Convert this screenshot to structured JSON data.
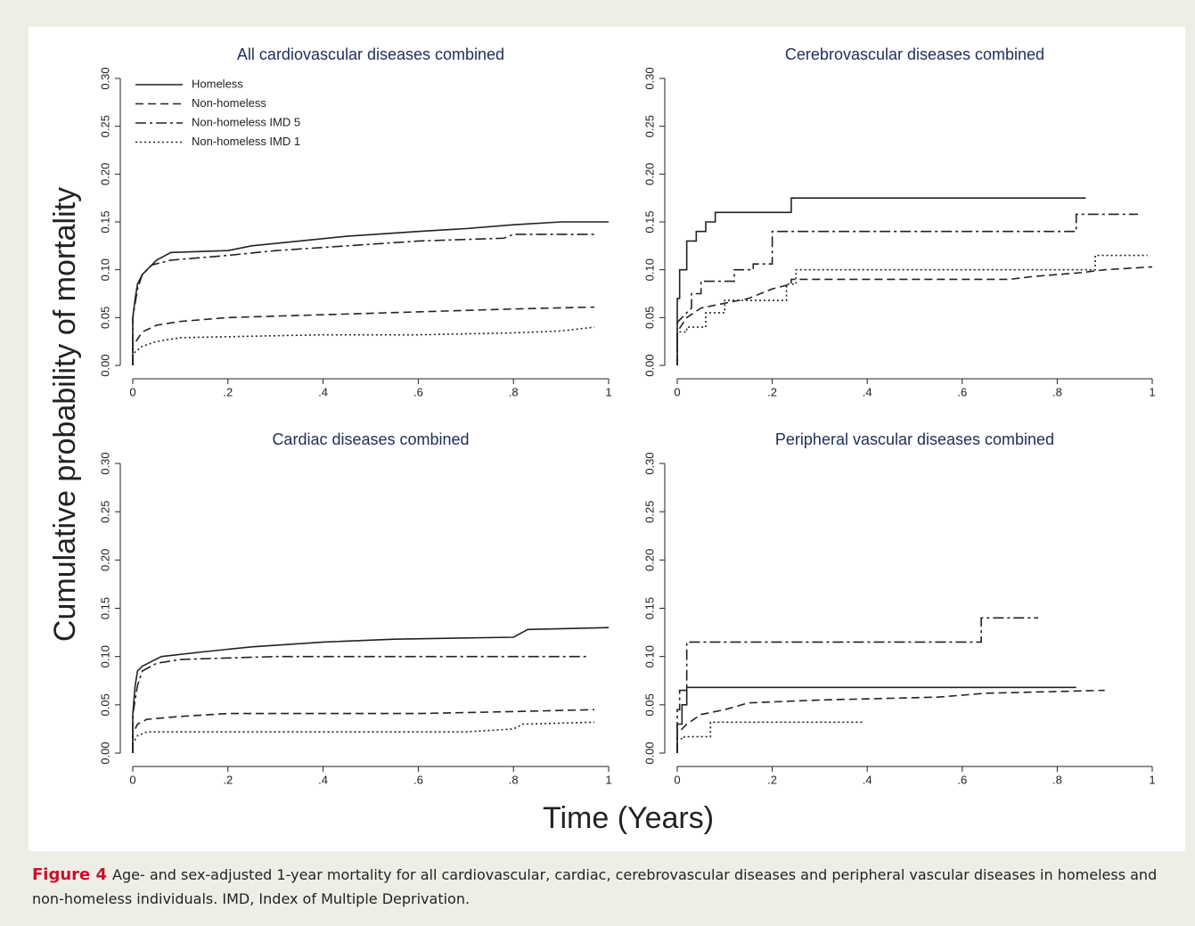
{
  "ylabel": "Cumulative probability of mortality",
  "xlabel": "Time (Years)",
  "caption": {
    "label": "Figure 4",
    "text": "Age- and sex-adjusted 1-year mortality for all cardiovascular, cardiac, cerebrovascular diseases and peripheral vascular diseases in homeless and non-homeless individuals. IMD, Index of Multiple Deprivation."
  },
  "chart_data": [
    {
      "type": "line",
      "title": "All cardiovascular diseases combined",
      "legend": "top-left",
      "xlim": [
        0,
        1
      ],
      "ylim": [
        0,
        0.3
      ],
      "xticks": [
        0,
        {
          "value": 0.2,
          "label": ".2"
        },
        {
          "value": 0.4,
          "label": ".4"
        },
        {
          "value": 0.6,
          "label": ".6"
        },
        {
          "value": 0.8,
          "label": ".8"
        },
        1
      ],
      "yticks": [
        {
          "value": 0,
          "label": "0.00"
        },
        {
          "value": 0.05,
          "label": "0.05"
        },
        {
          "value": 0.1,
          "label": "0.10"
        },
        {
          "value": 0.15,
          "label": "0.15"
        },
        {
          "value": 0.2,
          "label": "0.20"
        },
        {
          "value": 0.25,
          "label": "0.25"
        },
        {
          "value": 0.3,
          "label": "0.30"
        }
      ],
      "series": [
        {
          "name": "Homeless",
          "color": "#222222",
          "dash": "none",
          "x": [
            0,
            0,
            0.005,
            0.01,
            0.02,
            0.03,
            0.05,
            0.08,
            0.2,
            0.25,
            0.35,
            0.45,
            0.6,
            0.7,
            0.8,
            0.9,
            1
          ],
          "values": [
            0,
            0.05,
            0.07,
            0.085,
            0.095,
            0.1,
            0.11,
            0.118,
            0.12,
            0.125,
            0.13,
            0.135,
            0.14,
            0.143,
            0.147,
            0.15,
            0.15
          ]
        },
        {
          "name": "Non-homeless",
          "color": "#222222",
          "dash": "9,5",
          "x": [
            0,
            0,
            0.02,
            0.05,
            0.1,
            0.2,
            0.4,
            0.6,
            0.8,
            0.97
          ],
          "values": [
            0,
            0.02,
            0.035,
            0.042,
            0.046,
            0.05,
            0.053,
            0.056,
            0.059,
            0.061
          ]
        },
        {
          "name": "Non-homeless IMD 5",
          "color": "#222222",
          "dash": "12,4,3,4",
          "x": [
            0,
            0,
            0.01,
            0.02,
            0.04,
            0.08,
            0.2,
            0.3,
            0.45,
            0.6,
            0.78,
            0.8,
            0.97
          ],
          "values": [
            0,
            0.05,
            0.08,
            0.095,
            0.105,
            0.11,
            0.115,
            0.12,
            0.125,
            0.13,
            0.133,
            0.137,
            0.137
          ]
        },
        {
          "name": "Non-homeless IMD 1",
          "color": "#222222",
          "dash": "2,3",
          "x": [
            0,
            0,
            0.02,
            0.05,
            0.1,
            0.2,
            0.4,
            0.6,
            0.8,
            0.9,
            0.97
          ],
          "values": [
            0,
            0.012,
            0.02,
            0.025,
            0.029,
            0.03,
            0.032,
            0.032,
            0.034,
            0.036,
            0.04
          ]
        }
      ]
    },
    {
      "type": "line",
      "title": "Cerebrovascular diseases combined",
      "xlim": [
        0,
        1
      ],
      "ylim": [
        0,
        0.3
      ],
      "xticks": [
        0,
        {
          "value": 0.2,
          "label": ".2"
        },
        {
          "value": 0.4,
          "label": ".4"
        },
        {
          "value": 0.6,
          "label": ".6"
        },
        {
          "value": 0.8,
          "label": ".8"
        },
        1
      ],
      "yticks": [
        {
          "value": 0,
          "label": "0.00"
        },
        {
          "value": 0.05,
          "label": "0.05"
        },
        {
          "value": 0.1,
          "label": "0.10"
        },
        {
          "value": 0.15,
          "label": "0.15"
        },
        {
          "value": 0.2,
          "label": "0.20"
        },
        {
          "value": 0.25,
          "label": "0.25"
        },
        {
          "value": 0.3,
          "label": "0.30"
        }
      ],
      "series": [
        {
          "color": "#222222",
          "dash": "none",
          "x": [
            0,
            0,
            0.005,
            0.005,
            0.02,
            0.02,
            0.04,
            0.04,
            0.06,
            0.06,
            0.08,
            0.08,
            0.24,
            0.24,
            0.86
          ],
          "values": [
            0,
            0.07,
            0.07,
            0.1,
            0.1,
            0.13,
            0.13,
            0.14,
            0.14,
            0.15,
            0.15,
            0.16,
            0.16,
            0.175,
            0.175
          ]
        },
        {
          "color": "#222222",
          "dash": "9,5",
          "x": [
            0,
            0,
            0.02,
            0.05,
            0.1,
            0.15,
            0.2,
            0.24,
            0.24,
            0.7,
            0.75,
            0.85,
            0.9,
            1
          ],
          "values": [
            0,
            0.035,
            0.05,
            0.06,
            0.065,
            0.07,
            0.08,
            0.085,
            0.09,
            0.09,
            0.093,
            0.097,
            0.1,
            0.103
          ]
        },
        {
          "color": "#222222",
          "dash": "12,4,3,4",
          "x": [
            0,
            0,
            0.03,
            0.03,
            0.05,
            0.05,
            0.12,
            0.12,
            0.16,
            0.16,
            0.2,
            0.2,
            0.84,
            0.84,
            0.97
          ],
          "values": [
            0,
            0.045,
            0.06,
            0.075,
            0.075,
            0.088,
            0.088,
            0.1,
            0.1,
            0.106,
            0.106,
            0.14,
            0.14,
            0.158,
            0.158
          ]
        },
        {
          "color": "#222222",
          "dash": "2,3",
          "x": [
            0,
            0,
            0.02,
            0.02,
            0.06,
            0.06,
            0.1,
            0.1,
            0.23,
            0.23,
            0.25,
            0.25,
            0.88,
            0.88,
            0.99
          ],
          "values": [
            0,
            0.035,
            0.035,
            0.04,
            0.04,
            0.055,
            0.055,
            0.068,
            0.068,
            0.085,
            0.085,
            0.1,
            0.1,
            0.115,
            0.115
          ]
        }
      ]
    },
    {
      "type": "line",
      "title": "Cardiac diseases combined",
      "xlim": [
        0,
        1
      ],
      "ylim": [
        0,
        0.3
      ],
      "xticks": [
        0,
        {
          "value": 0.2,
          "label": ".2"
        },
        {
          "value": 0.4,
          "label": ".4"
        },
        {
          "value": 0.6,
          "label": ".6"
        },
        {
          "value": 0.8,
          "label": ".8"
        },
        1
      ],
      "yticks": [
        {
          "value": 0,
          "label": "0.00"
        },
        {
          "value": 0.05,
          "label": "0.05"
        },
        {
          "value": 0.1,
          "label": "0.10"
        },
        {
          "value": 0.15,
          "label": "0.15"
        },
        {
          "value": 0.2,
          "label": "0.20"
        },
        {
          "value": 0.25,
          "label": "0.25"
        },
        {
          "value": 0.3,
          "label": "0.30"
        }
      ],
      "series": [
        {
          "color": "#222222",
          "dash": "none",
          "x": [
            0,
            0,
            0.005,
            0.01,
            0.02,
            0.04,
            0.06,
            0.15,
            0.25,
            0.4,
            0.55,
            0.8,
            0.83,
            1
          ],
          "values": [
            0,
            0.04,
            0.07,
            0.085,
            0.09,
            0.095,
            0.1,
            0.105,
            0.11,
            0.115,
            0.118,
            0.12,
            0.128,
            0.13
          ]
        },
        {
          "color": "#222222",
          "dash": "9,5",
          "x": [
            0,
            0,
            0.01,
            0.03,
            0.1,
            0.2,
            0.6,
            0.8,
            0.97
          ],
          "values": [
            0,
            0.02,
            0.03,
            0.035,
            0.038,
            0.041,
            0.041,
            0.043,
            0.045
          ]
        },
        {
          "color": "#222222",
          "dash": "12,4,3,4",
          "x": [
            0,
            0,
            0.01,
            0.02,
            0.05,
            0.1,
            0.3,
            0.96
          ],
          "values": [
            0,
            0.04,
            0.07,
            0.085,
            0.093,
            0.097,
            0.1,
            0.1
          ]
        },
        {
          "color": "#222222",
          "dash": "2,3",
          "x": [
            0,
            0,
            0.01,
            0.03,
            0.7,
            0.8,
            0.82,
            0.97
          ],
          "values": [
            0,
            0.01,
            0.018,
            0.022,
            0.022,
            0.025,
            0.03,
            0.032
          ]
        }
      ]
    },
    {
      "type": "line",
      "title": "Peripheral vascular diseases combined",
      "xlim": [
        0,
        1
      ],
      "ylim": [
        0,
        0.3
      ],
      "xticks": [
        0,
        {
          "value": 0.2,
          "label": ".2"
        },
        {
          "value": 0.4,
          "label": ".4"
        },
        {
          "value": 0.6,
          "label": ".6"
        },
        {
          "value": 0.8,
          "label": ".8"
        },
        1
      ],
      "yticks": [
        {
          "value": 0,
          "label": "0.00"
        },
        {
          "value": 0.05,
          "label": "0.05"
        },
        {
          "value": 0.1,
          "label": "0.10"
        },
        {
          "value": 0.15,
          "label": "0.15"
        },
        {
          "value": 0.2,
          "label": "0.20"
        },
        {
          "value": 0.25,
          "label": "0.25"
        },
        {
          "value": 0.3,
          "label": "0.30"
        }
      ],
      "series": [
        {
          "color": "#222222",
          "dash": "none",
          "x": [
            0,
            0,
            0.01,
            0.01,
            0.02,
            0.02,
            0.84
          ],
          "values": [
            0,
            0.03,
            0.03,
            0.05,
            0.05,
            0.068,
            0.068
          ]
        },
        {
          "color": "#222222",
          "dash": "9,5",
          "x": [
            0,
            0,
            0.02,
            0.05,
            0.1,
            0.15,
            0.3,
            0.55,
            0.65,
            0.9
          ],
          "values": [
            0,
            0.02,
            0.03,
            0.04,
            0.045,
            0.052,
            0.055,
            0.058,
            0.062,
            0.065
          ]
        },
        {
          "color": "#222222",
          "dash": "12,4,3,4",
          "x": [
            0,
            0,
            0.005,
            0.005,
            0.02,
            0.02,
            0.64,
            0.64,
            0.76
          ],
          "values": [
            0,
            0.045,
            0.045,
            0.065,
            0.065,
            0.115,
            0.115,
            0.14,
            0.14
          ]
        },
        {
          "color": "#222222",
          "dash": "2,3",
          "x": [
            0,
            0,
            0.015,
            0.015,
            0.07,
            0.07,
            0.39
          ],
          "values": [
            0,
            0.015,
            0.015,
            0.017,
            0.017,
            0.032,
            0.032
          ]
        }
      ]
    }
  ]
}
